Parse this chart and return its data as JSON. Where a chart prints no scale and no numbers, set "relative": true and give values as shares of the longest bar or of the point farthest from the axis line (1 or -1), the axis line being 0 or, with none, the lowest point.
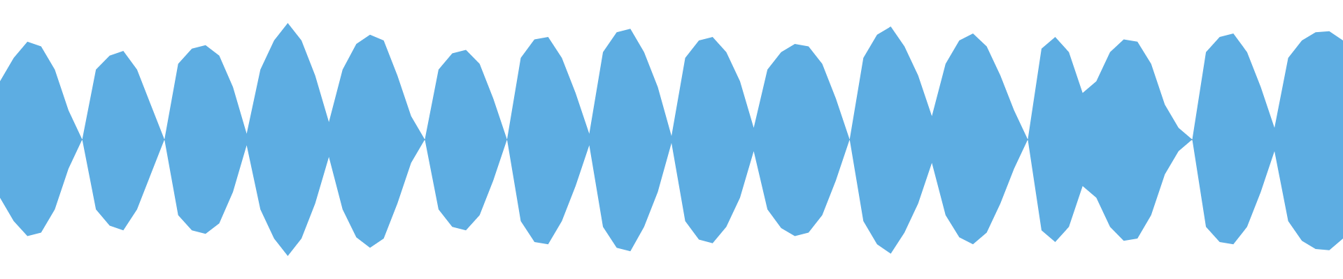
{
  "chart_data": {
    "type": "area",
    "relative": true,
    "categories": [
      null,
      null,
      null,
      null,
      null,
      null,
      null,
      null,
      null,
      null,
      null,
      null,
      null,
      null,
      null,
      null,
      null,
      null,
      null,
      null,
      null,
      null,
      null,
      null,
      null,
      null,
      null,
      null,
      null,
      null,
      null,
      null,
      null,
      null,
      null,
      null,
      null,
      null,
      null,
      null,
      null,
      null,
      null,
      null,
      null,
      null,
      null,
      null,
      null,
      null,
      null,
      null,
      null,
      null,
      null,
      null,
      null,
      null,
      null,
      null,
      null,
      null,
      null,
      null,
      null,
      null,
      null,
      null,
      null,
      null,
      null,
      null,
      null,
      null,
      null,
      null,
      null,
      null,
      null,
      null,
      null,
      null,
      null,
      null,
      null,
      null,
      null,
      null,
      null,
      null,
      null,
      null,
      null,
      null,
      null,
      null,
      null,
      null,
      null
    ],
    "series": [
      {
        "color": "#5dade2",
        "values": [
          0.5,
          0.7,
          0.84,
          0.8,
          0.6,
          0.25,
          0,
          0.6,
          0.72,
          0.76,
          0.6,
          0.3,
          0,
          0.65,
          0.78,
          0.81,
          0.72,
          0.45,
          0.05,
          0.6,
          0.85,
          1.0,
          0.85,
          0.55,
          0.15,
          0.6,
          0.82,
          0.9,
          0.85,
          0.55,
          0.2,
          0,
          0.6,
          0.74,
          0.77,
          0.65,
          0.35,
          0,
          0.7,
          0.86,
          0.88,
          0.7,
          0.4,
          0.05,
          0.75,
          0.92,
          0.95,
          0.75,
          0.45,
          0.03,
          0.7,
          0.85,
          0.88,
          0.75,
          0.5,
          0.1,
          0.6,
          0.75,
          0.82,
          0.8,
          0.65,
          0.35,
          0,
          0.7,
          0.9,
          0.97,
          0.8,
          0.55,
          0.2,
          0.65,
          0.85,
          0.91,
          0.8,
          0.55,
          0.25,
          0,
          0.78,
          0.88,
          0.75,
          0.4,
          0.5,
          0.75,
          0.86,
          0.84,
          0.65,
          0.3,
          0.1,
          0,
          0.75,
          0.88,
          0.91,
          0.75,
          0.45,
          0.1,
          0.7,
          0.85,
          0.92,
          0.93,
          0.85
        ]
      },
      {
        "color": "#5dade2",
        "values": [
          -0.5,
          -0.7,
          -0.83,
          -0.8,
          -0.6,
          -0.25,
          0,
          -0.6,
          -0.74,
          -0.78,
          -0.6,
          -0.3,
          0,
          -0.65,
          -0.78,
          -0.81,
          -0.72,
          -0.45,
          -0.05,
          -0.6,
          -0.85,
          -1.0,
          -0.85,
          -0.55,
          -0.15,
          -0.6,
          -0.84,
          -0.93,
          -0.85,
          -0.55,
          -0.2,
          0,
          -0.6,
          -0.75,
          -0.78,
          -0.65,
          -0.35,
          0,
          -0.7,
          -0.88,
          -0.9,
          -0.7,
          -0.4,
          -0.05,
          -0.75,
          -0.93,
          -0.96,
          -0.75,
          -0.45,
          -0.03,
          -0.7,
          -0.86,
          -0.89,
          -0.75,
          -0.5,
          -0.1,
          -0.6,
          -0.76,
          -0.83,
          -0.8,
          -0.65,
          -0.35,
          0,
          -0.7,
          -0.9,
          -0.98,
          -0.8,
          -0.55,
          -0.2,
          -0.65,
          -0.84,
          -0.9,
          -0.8,
          -0.55,
          -0.25,
          0,
          -0.78,
          -0.88,
          -0.75,
          -0.4,
          -0.5,
          -0.75,
          -0.87,
          -0.85,
          -0.65,
          -0.3,
          -0.1,
          0,
          -0.75,
          -0.88,
          -0.9,
          -0.75,
          -0.45,
          -0.1,
          -0.7,
          -0.87,
          -0.94,
          -0.95,
          -0.85
        ]
      }
    ]
  }
}
